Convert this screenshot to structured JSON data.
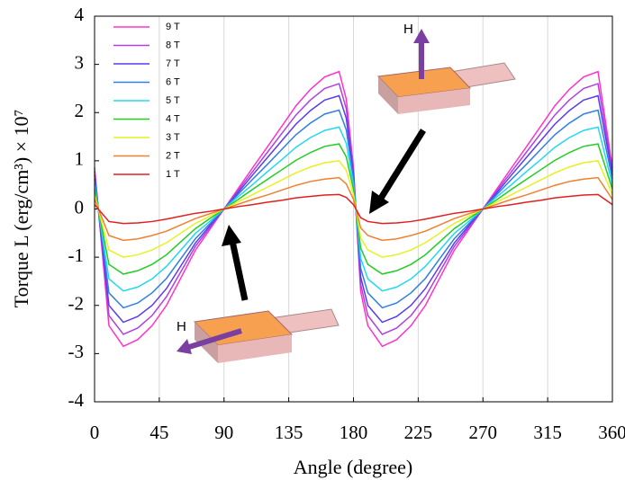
{
  "chart_data": {
    "type": "line",
    "x_label": "Angle (degree)",
    "y_label": "Torque L (erg/cm³) × 10⁷",
    "x": [
      0,
      10,
      20,
      30,
      40,
      50,
      60,
      70,
      80,
      90,
      100,
      110,
      120,
      130,
      140,
      150,
      160,
      170,
      175,
      180,
      185,
      190,
      200,
      210,
      220,
      230,
      240,
      250,
      260,
      270,
      280,
      290,
      300,
      310,
      320,
      330,
      340,
      350,
      360
    ],
    "xlim": [
      0,
      360
    ],
    "xticks": [
      0,
      45,
      90,
      135,
      180,
      225,
      270,
      315,
      360
    ],
    "ylim": [
      -4,
      4
    ],
    "yticks": [
      -4,
      -3,
      -2,
      -1,
      0,
      1,
      2,
      3,
      4
    ],
    "grid": true,
    "legend": "upper-left",
    "series": [
      {
        "name": "9 T",
        "color": "#ff33cc",
        "values": [
          0.86,
          -2.42,
          -2.85,
          -2.71,
          -2.42,
          -2.0,
          -1.43,
          -0.86,
          -0.43,
          0,
          0.43,
          0.86,
          1.28,
          1.71,
          2.14,
          2.48,
          2.74,
          2.85,
          2.28,
          0.86,
          -1.71,
          -2.42,
          -2.85,
          -2.71,
          -2.42,
          -2.0,
          -1.43,
          -0.86,
          -0.43,
          0,
          0.43,
          0.86,
          1.28,
          1.71,
          2.14,
          2.48,
          2.74,
          2.85,
          0.86
        ]
      },
      {
        "name": "8 T",
        "color": "#b040e0",
        "values": [
          0.78,
          -2.21,
          -2.6,
          -2.47,
          -2.21,
          -1.82,
          -1.3,
          -0.78,
          -0.39,
          0,
          0.39,
          0.78,
          1.17,
          1.56,
          1.95,
          2.26,
          2.5,
          2.6,
          2.08,
          0.78,
          -1.56,
          -2.21,
          -2.6,
          -2.47,
          -2.21,
          -1.82,
          -1.3,
          -0.78,
          -0.39,
          0,
          0.39,
          0.78,
          1.17,
          1.56,
          1.95,
          2.26,
          2.5,
          2.6,
          0.78
        ]
      },
      {
        "name": "7 T",
        "color": "#5a3cf0",
        "values": [
          0.71,
          -2.0,
          -2.35,
          -2.23,
          -2.0,
          -1.65,
          -1.18,
          -0.71,
          -0.35,
          0,
          0.35,
          0.71,
          1.06,
          1.41,
          1.76,
          2.04,
          2.26,
          2.35,
          1.88,
          0.71,
          -1.41,
          -2.0,
          -2.35,
          -2.23,
          -2.0,
          -1.65,
          -1.18,
          -0.71,
          -0.35,
          0,
          0.35,
          0.71,
          1.06,
          1.41,
          1.76,
          2.04,
          2.26,
          2.35,
          0.71
        ]
      },
      {
        "name": "6 T",
        "color": "#2f7fe0",
        "values": [
          0.62,
          -1.74,
          -2.05,
          -1.95,
          -1.74,
          -1.44,
          -1.03,
          -0.62,
          -0.31,
          0,
          0.31,
          0.62,
          0.92,
          1.23,
          1.54,
          1.78,
          1.97,
          2.05,
          1.64,
          0.62,
          -1.23,
          -1.74,
          -2.05,
          -1.95,
          -1.74,
          -1.44,
          -1.03,
          -0.62,
          -0.31,
          0,
          0.31,
          0.62,
          0.92,
          1.23,
          1.54,
          1.78,
          1.97,
          2.05,
          0.62
        ]
      },
      {
        "name": "5 T",
        "color": "#22d8f0",
        "values": [
          0.51,
          -1.45,
          -1.7,
          -1.62,
          -1.45,
          -1.19,
          -0.85,
          -0.51,
          -0.26,
          0,
          0.26,
          0.51,
          0.77,
          1.02,
          1.28,
          1.48,
          1.63,
          1.7,
          1.36,
          0.51,
          -1.02,
          -1.45,
          -1.7,
          -1.62,
          -1.45,
          -1.19,
          -0.85,
          -0.51,
          -0.26,
          0,
          0.26,
          0.51,
          0.77,
          1.02,
          1.28,
          1.48,
          1.63,
          1.7,
          0.51
        ]
      },
      {
        "name": "4 T",
        "color": "#22cc22",
        "values": [
          0.41,
          -1.15,
          -1.35,
          -1.28,
          -1.15,
          -0.95,
          -0.68,
          -0.41,
          -0.2,
          0,
          0.2,
          0.41,
          0.61,
          0.81,
          1.01,
          1.17,
          1.3,
          1.35,
          1.08,
          0.41,
          -0.81,
          -1.15,
          -1.35,
          -1.28,
          -1.15,
          -0.95,
          -0.68,
          -0.41,
          -0.2,
          0,
          0.2,
          0.41,
          0.61,
          0.81,
          1.01,
          1.17,
          1.3,
          1.35,
          0.41
        ]
      },
      {
        "name": "3 T",
        "color": "#e8f020",
        "values": [
          0.3,
          -0.85,
          -1,
          -0.95,
          -0.85,
          -0.7,
          -0.5,
          -0.3,
          -0.15,
          0,
          0.15,
          0.3,
          0.45,
          0.6,
          0.75,
          0.87,
          0.96,
          1,
          0.8,
          0.3,
          -0.6,
          -0.85,
          -1,
          -0.95,
          -0.85,
          -0.7,
          -0.5,
          -0.3,
          -0.15,
          0,
          0.15,
          0.3,
          0.45,
          0.6,
          0.75,
          0.87,
          0.96,
          1,
          0.3
        ]
      },
      {
        "name": "2 T",
        "color": "#f08030",
        "values": [
          0.2,
          -0.55,
          -0.65,
          -0.62,
          -0.55,
          -0.46,
          -0.33,
          -0.2,
          -0.1,
          0,
          0.1,
          0.2,
          0.29,
          0.39,
          0.49,
          0.57,
          0.62,
          0.65,
          0.52,
          0.2,
          -0.39,
          -0.55,
          -0.65,
          -0.62,
          -0.55,
          -0.46,
          -0.33,
          -0.2,
          -0.1,
          0,
          0.1,
          0.2,
          0.29,
          0.39,
          0.49,
          0.57,
          0.62,
          0.65,
          0.2
        ]
      },
      {
        "name": "1 T",
        "color": "#e02020",
        "values": [
          0.09,
          -0.26,
          -0.3,
          -0.29,
          -0.26,
          -0.21,
          -0.15,
          -0.09,
          -0.05,
          0,
          0.05,
          0.09,
          0.14,
          0.18,
          0.23,
          0.26,
          0.29,
          0.3,
          0.24,
          0.09,
          -0.18,
          -0.26,
          -0.3,
          -0.29,
          -0.26,
          -0.21,
          -0.15,
          -0.09,
          -0.05,
          0,
          0.05,
          0.09,
          0.14,
          0.18,
          0.23,
          0.26,
          0.29,
          0.3,
          0.09
        ]
      }
    ],
    "annotations": [
      "H",
      "H"
    ]
  }
}
